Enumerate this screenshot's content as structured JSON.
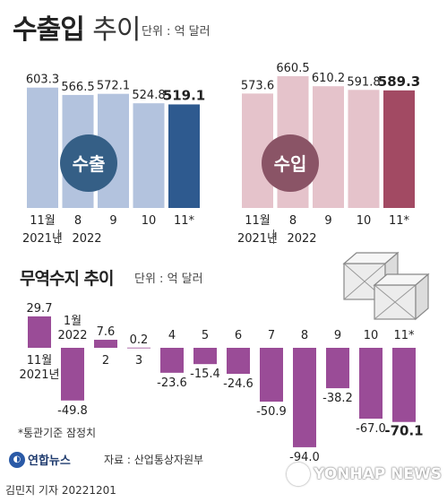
{
  "header": {
    "title": "수출입",
    "subtitle": "추이",
    "unit": "단위 : 억 달러"
  },
  "section2": {
    "title": "무역수지 추이",
    "unit": "단위 : 억 달러"
  },
  "footer": {
    "note": "*통관기준 잠정치",
    "logo": "연합뉴스",
    "source": "자료 : 산업통상자원부",
    "credit": "김민지 기자  20221201",
    "watermark": "YONHAP NEWS"
  },
  "colors": {
    "export_bar": "#b3c3de",
    "export_last": "#2e5a8f",
    "export_badge": "#355f86",
    "import_bar": "#e5c3cb",
    "import_last": "#a24a63",
    "import_badge": "#8a5466",
    "balance_bar": "#9a4c97"
  },
  "chart_data": [
    {
      "type": "bar",
      "name": "수출",
      "categories": [
        "11월 2021년",
        "8",
        "9",
        "10",
        "11*"
      ],
      "x_tick_labels": [
        "11월",
        "8",
        "9",
        "10",
        "11*"
      ],
      "x_group_labels": [
        "2021년",
        "2022"
      ],
      "values": [
        603.3,
        566.5,
        572.1,
        524.8,
        519.1
      ],
      "value_labels": [
        "603.3",
        "566.5",
        "572.1",
        "524.8",
        "519.1"
      ],
      "badge": "수출",
      "ylim": [
        0,
        700
      ]
    },
    {
      "type": "bar",
      "name": "수입",
      "categories": [
        "11월 2021년",
        "8",
        "9",
        "10",
        "11*"
      ],
      "x_tick_labels": [
        "11월",
        "8",
        "9",
        "10",
        "11*"
      ],
      "x_group_labels": [
        "2021년",
        "2022"
      ],
      "values": [
        573.6,
        660.5,
        610.2,
        591.8,
        589.3
      ],
      "value_labels": [
        "573.6",
        "660.5",
        "610.2",
        "591.8",
        "589.3"
      ],
      "badge": "수입",
      "ylim": [
        0,
        700
      ]
    },
    {
      "type": "bar",
      "name": "무역수지",
      "categories": [
        "11월 2021년",
        "1월 2022",
        "2",
        "3",
        "4",
        "5",
        "6",
        "7",
        "8",
        "9",
        "10",
        "11*"
      ],
      "x_tick_labels": [
        "11월\n2021년",
        "1월\n2022",
        "2",
        "3",
        "4",
        "5",
        "6",
        "7",
        "8",
        "9",
        "10",
        "11*"
      ],
      "values": [
        29.7,
        -49.8,
        7.6,
        0.2,
        -23.6,
        -15.4,
        -24.6,
        -50.9,
        -94.0,
        -38.2,
        -67.0,
        -70.1
      ],
      "value_labels": [
        "29.7",
        "-49.8",
        "7.6",
        "0.2",
        "-23.6",
        "-15.4",
        "-24.6",
        "-50.9",
        "-94.0",
        "-38.2",
        "-67.0",
        "-70.1"
      ]
    }
  ]
}
